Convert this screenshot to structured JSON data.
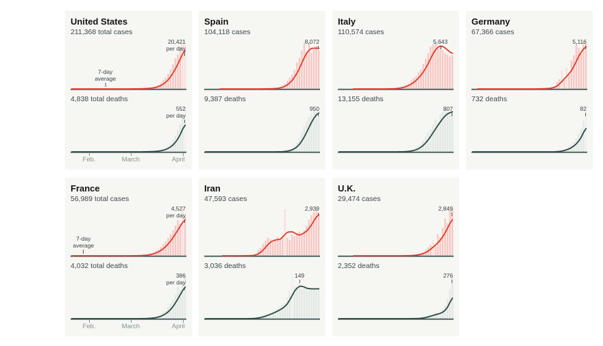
{
  "colors": {
    "panel_bg": "#f6f6f3",
    "cases_bar": "#f6c7c3",
    "cases_bar_pale": "#fadfdc",
    "cases_line": "#e23a2b",
    "deaths_bar": "#e2e8e4",
    "deaths_bar_pale": "#eef1ee",
    "deaths_line": "#2c4844",
    "baseline": "#3e5854",
    "annotation": "#37403f",
    "axis_text": "#82938f"
  },
  "axis": {
    "ticks": [
      {
        "label": "Feb.",
        "x": 0.16,
        "align": "center"
      },
      {
        "label": "March",
        "x": 0.52,
        "align": "center"
      },
      {
        "label": "April",
        "x": 0.97,
        "align": "right"
      }
    ]
  },
  "chart_data": [
    {
      "type": "bar+line",
      "country": "United States",
      "cases_total_label": "211,368 total cases",
      "deaths_total_label": "4,838 total deaths",
      "cases_peak_label": "20,421\nper day",
      "deaths_peak_label": "552\nper day",
      "avg_label": "7-day\naverage",
      "avg_x": 0.3,
      "show_axis": true,
      "line_start": 0.0,
      "cases_daily": [
        0,
        0,
        0,
        0,
        0,
        0,
        0,
        0,
        0,
        0,
        0,
        0,
        0,
        0,
        0,
        0,
        1,
        1,
        2,
        2,
        3,
        5,
        8,
        12,
        20,
        30,
        60,
        80,
        120,
        180,
        260,
        400,
        550,
        800,
        1100,
        1700,
        2400,
        3500,
        5000,
        6500,
        8500,
        11000,
        14000,
        17500,
        19500,
        24000,
        26500,
        25000
      ],
      "cases_pale_days": [
        46,
        47
      ],
      "deaths_daily": [
        0,
        0,
        0,
        0,
        0,
        0,
        0,
        0,
        0,
        0,
        0,
        0,
        0,
        0,
        0,
        0,
        0,
        0,
        0,
        0,
        0,
        0,
        0,
        0,
        0,
        0,
        0,
        0,
        0,
        0,
        2,
        3,
        4,
        6,
        10,
        15,
        22,
        35,
        50,
        70,
        100,
        140,
        200,
        270,
        350,
        450,
        600,
        700
      ],
      "deaths_pale_days": [
        47
      ]
    },
    {
      "type": "bar+line",
      "country": "Spain",
      "cases_total_label": "104,118 cases",
      "deaths_total_label": "9,387 deaths",
      "cases_peak_label": "8,072",
      "deaths_peak_label": "950",
      "avg_label": null,
      "avg_x": null,
      "show_axis": false,
      "line_start": 0.13,
      "cases_daily": [
        0,
        0,
        0,
        0,
        0,
        0,
        0,
        0,
        0,
        0,
        0,
        0,
        0,
        0,
        0,
        0,
        0,
        0,
        0,
        0,
        0,
        0,
        5,
        8,
        12,
        20,
        35,
        60,
        100,
        150,
        250,
        400,
        700,
        1100,
        1700,
        2300,
        3000,
        4000,
        5500,
        6500,
        8000,
        9500,
        7800,
        9700,
        7500,
        8200,
        9000,
        8100
      ],
      "cases_pale_days": [],
      "deaths_daily": [
        0,
        0,
        0,
        0,
        0,
        0,
        0,
        0,
        0,
        0,
        0,
        0,
        0,
        0,
        0,
        0,
        0,
        0,
        0,
        0,
        0,
        0,
        0,
        0,
        0,
        0,
        0,
        0,
        0,
        0,
        3,
        6,
        10,
        20,
        35,
        60,
        100,
        150,
        220,
        330,
        450,
        600,
        720,
        820,
        900,
        1000,
        950,
        980
      ],
      "deaths_pale_days": []
    },
    {
      "type": "bar+line",
      "country": "Italy",
      "cases_total_label": "110,574 cases",
      "deaths_total_label": "13,155 deaths",
      "cases_peak_label": "5,643",
      "deaths_peak_label": "807",
      "avg_label": null,
      "avg_x": null,
      "show_axis": false,
      "line_start": 0.12,
      "cases_daily": [
        0,
        0,
        0,
        0,
        0,
        0,
        0,
        0,
        0,
        0,
        0,
        0,
        0,
        0,
        0,
        0,
        0,
        0,
        2,
        5,
        10,
        20,
        40,
        80,
        130,
        200,
        300,
        450,
        600,
        800,
        1200,
        1500,
        1800,
        2300,
        2700,
        3500,
        4200,
        5000,
        5900,
        6200,
        6500,
        5700,
        6100,
        5400,
        5000,
        4800,
        4500,
        4700
      ],
      "cases_pale_days": [],
      "deaths_daily": [
        0,
        0,
        0,
        0,
        0,
        0,
        0,
        0,
        0,
        0,
        0,
        0,
        0,
        0,
        0,
        0,
        0,
        0,
        0,
        0,
        0,
        0,
        0,
        0,
        0,
        2,
        4,
        8,
        12,
        20,
        35,
        50,
        80,
        120,
        170,
        230,
        300,
        380,
        450,
        550,
        650,
        600,
        750,
        800,
        850,
        800,
        760,
        820
      ],
      "deaths_pale_days": []
    },
    {
      "type": "bar+line",
      "country": "Germany",
      "cases_total_label": "67,366 cases",
      "deaths_total_label": "732 deaths",
      "cases_peak_label": "5,116",
      "deaths_peak_label": "82",
      "avg_label": null,
      "avg_x": null,
      "show_axis": false,
      "line_start": 0.05,
      "cases_daily": [
        0,
        0,
        0,
        0,
        0,
        0,
        0,
        0,
        0,
        0,
        0,
        0,
        0,
        0,
        0,
        0,
        0,
        0,
        0,
        0,
        0,
        0,
        0,
        0,
        0,
        0,
        10,
        15,
        25,
        40,
        60,
        100,
        150,
        250,
        400,
        900,
        1300,
        2500,
        1200,
        2900,
        2000,
        3800,
        4500,
        6000,
        5500,
        4800,
        6200,
        6000
      ],
      "cases_pale_days": [
        37,
        39
      ],
      "deaths_daily": [
        0,
        0,
        0,
        0,
        0,
        0,
        0,
        0,
        0,
        0,
        0,
        0,
        0,
        0,
        0,
        0,
        0,
        0,
        0,
        0,
        0,
        0,
        0,
        0,
        0,
        0,
        0,
        0,
        0,
        0,
        0,
        0,
        0,
        0,
        1,
        2,
        3,
        5,
        8,
        12,
        16,
        22,
        30,
        40,
        55,
        70,
        95,
        130
      ],
      "deaths_pale_days": [
        47
      ]
    },
    {
      "type": "bar+line",
      "country": "France",
      "cases_total_label": "56,989 total cases",
      "deaths_total_label": "4,032 total deaths",
      "cases_peak_label": "4,527\nper day",
      "deaths_peak_label": "386\nper day",
      "avg_label": "7-day\naverage",
      "avg_x": 0.02,
      "show_axis": true,
      "line_start": 0.0,
      "cases_daily": [
        0,
        0,
        0,
        0,
        0,
        0,
        0,
        0,
        0,
        0,
        0,
        0,
        0,
        0,
        0,
        0,
        0,
        0,
        0,
        0,
        0,
        0,
        0,
        0,
        5,
        8,
        12,
        20,
        40,
        70,
        100,
        150,
        250,
        350,
        500,
        700,
        900,
        1200,
        1600,
        2000,
        2500,
        3000,
        3600,
        4200,
        5000,
        4500,
        6500,
        5500
      ],
      "cases_pale_days": [
        46
      ],
      "deaths_daily": [
        0,
        0,
        0,
        0,
        0,
        0,
        0,
        0,
        0,
        0,
        0,
        0,
        0,
        0,
        0,
        0,
        0,
        0,
        0,
        0,
        0,
        0,
        0,
        0,
        0,
        0,
        0,
        0,
        1,
        2,
        3,
        5,
        8,
        12,
        18,
        28,
        40,
        60,
        85,
        110,
        150,
        200,
        250,
        320,
        420,
        380,
        500,
        560
      ],
      "deaths_pale_days": []
    },
    {
      "type": "bar+line",
      "country": "Iran",
      "cases_total_label": "47,593 cases",
      "deaths_total_label": "3,036 deaths",
      "cases_peak_label": "2,939",
      "deaths_peak_label": "149",
      "avg_label": null,
      "avg_x": null,
      "show_axis": false,
      "line_start": 0.14,
      "cases_daily": [
        0,
        0,
        0,
        0,
        0,
        0,
        0,
        0,
        0,
        0,
        0,
        0,
        0,
        0,
        0,
        0,
        2,
        5,
        15,
        30,
        75,
        120,
        380,
        520,
        800,
        1000,
        1200,
        1100,
        900,
        1050,
        1250,
        1100,
        1300,
        3100,
        1200,
        1050,
        1450,
        1300,
        1500,
        1600,
        1400,
        1700,
        2000,
        2400,
        2700,
        2900,
        3100,
        2800
      ],
      "cases_pale_days": [
        33
      ],
      "deaths_daily": [
        0,
        0,
        0,
        0,
        0,
        0,
        0,
        0,
        0,
        0,
        0,
        0,
        0,
        0,
        0,
        0,
        0,
        0,
        1,
        1,
        2,
        4,
        8,
        12,
        16,
        20,
        25,
        30,
        35,
        40,
        50,
        55,
        65,
        75,
        100,
        130,
        200,
        150,
        150,
        145,
        140,
        145,
        140,
        135,
        140,
        145,
        140,
        145
      ],
      "deaths_pale_days": [
        36
      ]
    },
    {
      "type": "bar+line",
      "country": "U.K.",
      "cases_total_label": "29,474 cases",
      "deaths_total_label": "2,352 deaths",
      "cases_peak_label": "2,849",
      "deaths_peak_label": "276",
      "avg_label": null,
      "avg_x": null,
      "show_axis": false,
      "line_start": 0.12,
      "cases_daily": [
        0,
        0,
        0,
        0,
        0,
        0,
        0,
        0,
        0,
        0,
        0,
        0,
        0,
        0,
        0,
        0,
        0,
        0,
        0,
        0,
        0,
        0,
        0,
        0,
        0,
        0,
        5,
        8,
        12,
        20,
        35,
        50,
        80,
        120,
        170,
        250,
        400,
        550,
        700,
        1000,
        650,
        1400,
        1200,
        1800,
        2400,
        2100,
        2900,
        3000
      ],
      "cases_pale_days": [
        39
      ],
      "deaths_daily": [
        0,
        0,
        0,
        0,
        0,
        0,
        0,
        0,
        0,
        0,
        0,
        0,
        0,
        0,
        0,
        0,
        0,
        0,
        0,
        0,
        0,
        0,
        0,
        0,
        0,
        0,
        0,
        0,
        0,
        0,
        1,
        2,
        3,
        5,
        8,
        12,
        20,
        33,
        40,
        33,
        56,
        48,
        54,
        87,
        120,
        180,
        260,
        380
      ],
      "deaths_pale_days": []
    }
  ]
}
